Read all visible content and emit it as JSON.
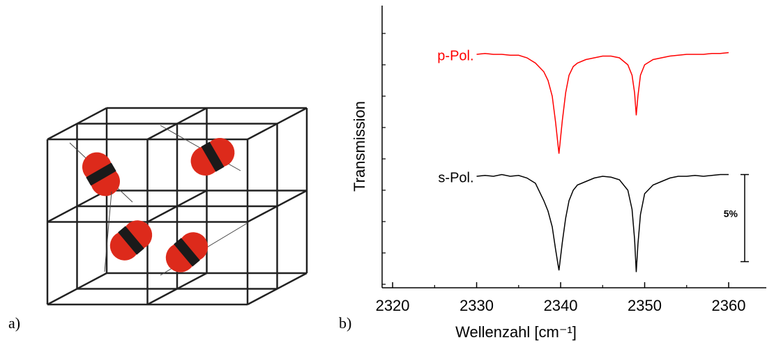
{
  "panels": {
    "a": "a)",
    "b": "b)"
  },
  "chart_data": {
    "type": "line",
    "x_label": "Wellenzahl [cm⁻¹]",
    "y_label": "Transmission",
    "x": [
      2330,
      2331,
      2332,
      2333,
      2334,
      2335,
      2336,
      2337,
      2338,
      2338.5,
      2339,
      2339.4,
      2339.8,
      2340.2,
      2340.6,
      2341,
      2341.5,
      2342,
      2343,
      2344,
      2345,
      2346,
      2347,
      2348,
      2348.5,
      2348.8,
      2349,
      2349.2,
      2349.5,
      2350,
      2351,
      2352,
      2353,
      2354,
      2355,
      2356,
      2357,
      2358,
      2359,
      2360
    ],
    "series": [
      {
        "name": "p-Pol.",
        "color": "#ff0000",
        "values": [
          13.4,
          13.45,
          13.4,
          13.4,
          13.35,
          13.35,
          13.2,
          12.9,
          12.4,
          11.9,
          11.0,
          9.5,
          7.7,
          9.6,
          11.2,
          12.2,
          12.7,
          12.9,
          13.1,
          13.2,
          13.3,
          13.3,
          13.2,
          12.8,
          12.2,
          11.2,
          9.9,
          11.0,
          12.2,
          12.8,
          13.1,
          13.2,
          13.3,
          13.35,
          13.4,
          13.4,
          13.4,
          13.45,
          13.45,
          13.5
        ]
      },
      {
        "name": "s-Pol.",
        "color": "#000000",
        "values": [
          6.4,
          6.45,
          6.4,
          6.5,
          6.4,
          6.45,
          6.3,
          6.0,
          5.0,
          4.4,
          3.5,
          2.2,
          1.0,
          2.6,
          4.0,
          5.0,
          5.6,
          5.9,
          6.1,
          6.3,
          6.4,
          6.35,
          6.2,
          5.6,
          4.5,
          2.8,
          0.9,
          2.5,
          4.2,
          5.4,
          5.9,
          6.1,
          6.3,
          6.4,
          6.4,
          6.45,
          6.4,
          6.45,
          6.5,
          6.5
        ]
      }
    ],
    "xlim": [
      2318.75,
      2364.48
    ],
    "xticks": [
      2320,
      2330,
      2340,
      2350,
      2360
    ],
    "xminorticks": [
      2325,
      2335,
      2345,
      2355
    ],
    "ylim": [
      0,
      16.2
    ],
    "yticks": [
      0.2,
      2,
      3.8,
      5.6,
      7.4,
      9.2,
      11,
      12.8,
      14.6
    ],
    "ytick_labels": false,
    "scale_bar": {
      "value": 5,
      "label": "5%"
    }
  }
}
